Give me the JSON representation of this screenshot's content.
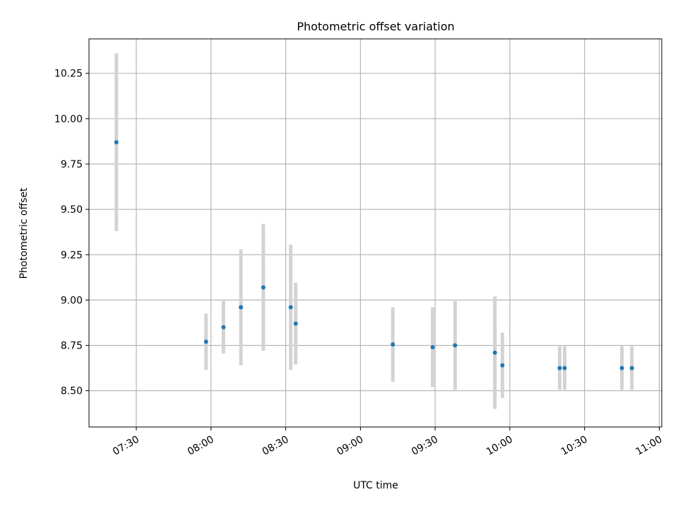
{
  "chart_data": {
    "type": "scatter",
    "title": "Photometric offset variation",
    "xlabel": "UTC time",
    "ylabel": "Photometric offset",
    "x_axis_type": "time",
    "xlim": [
      "07:11",
      "11:01"
    ],
    "ylim": [
      8.3,
      10.44
    ],
    "grid": true,
    "x_ticks": [
      "07:30",
      "08:00",
      "08:30",
      "09:00",
      "09:30",
      "10:00",
      "10:30",
      "11:00"
    ],
    "y_ticks": [
      "8.50",
      "8.75",
      "9.00",
      "9.25",
      "9.50",
      "9.75",
      "10.00",
      "10.25"
    ],
    "colors": {
      "points": "#1f77b4",
      "errorbars": "#d3d3d3",
      "grid": "#b0b0b0"
    },
    "points": [
      {
        "x": "07:22",
        "y": 9.87,
        "err": 0.49
      },
      {
        "x": "07:58",
        "y": 8.77,
        "err": 0.155
      },
      {
        "x": "08:05",
        "y": 8.85,
        "err": 0.145
      },
      {
        "x": "08:12",
        "y": 8.96,
        "err": 0.32
      },
      {
        "x": "08:21",
        "y": 9.07,
        "err": 0.35
      },
      {
        "x": "08:32",
        "y": 8.96,
        "err": 0.345
      },
      {
        "x": "08:34",
        "y": 8.87,
        "err": 0.225
      },
      {
        "x": "09:13",
        "y": 8.755,
        "err": 0.205
      },
      {
        "x": "09:29",
        "y": 8.74,
        "err": 0.22
      },
      {
        "x": "09:38",
        "y": 8.75,
        "err": 0.245
      },
      {
        "x": "09:54",
        "y": 8.71,
        "err": 0.31
      },
      {
        "x": "09:57",
        "y": 8.64,
        "err": 0.18
      },
      {
        "x": "10:20",
        "y": 8.625,
        "err": 0.12
      },
      {
        "x": "10:22",
        "y": 8.625,
        "err": 0.12
      },
      {
        "x": "10:45",
        "y": 8.625,
        "err": 0.12
      },
      {
        "x": "10:49",
        "y": 8.625,
        "err": 0.12
      }
    ]
  }
}
